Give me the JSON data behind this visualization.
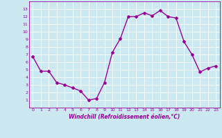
{
  "x": [
    0,
    1,
    2,
    3,
    4,
    5,
    6,
    7,
    8,
    9,
    10,
    11,
    12,
    13,
    14,
    15,
    16,
    17,
    18,
    19,
    20,
    21,
    22,
    23
  ],
  "y": [
    6.7,
    4.8,
    4.8,
    3.3,
    3.0,
    2.6,
    2.2,
    1.0,
    1.2,
    3.3,
    7.3,
    9.1,
    12.0,
    12.0,
    12.5,
    12.1,
    12.8,
    12.0,
    11.8,
    8.7,
    7.0,
    4.7,
    5.2,
    5.5
  ],
  "line_color": "#990099",
  "marker": "D",
  "marker_size": 2,
  "bg_color": "#cce8f0",
  "grid_color": "#ffffff",
  "xlabel": "Windchill (Refroidissement éolien,°C)",
  "xlabel_color": "#990099",
  "tick_color": "#990099",
  "ylim": [
    0,
    14
  ],
  "xlim": [
    -0.5,
    23.5
  ],
  "yticks": [
    1,
    2,
    3,
    4,
    5,
    6,
    7,
    8,
    9,
    10,
    11,
    12,
    13
  ],
  "xticks": [
    0,
    1,
    2,
    3,
    4,
    5,
    6,
    7,
    8,
    9,
    10,
    11,
    12,
    13,
    14,
    15,
    16,
    17,
    18,
    19,
    20,
    21,
    22,
    23
  ],
  "spine_color": "#990099",
  "line_width": 1.0
}
